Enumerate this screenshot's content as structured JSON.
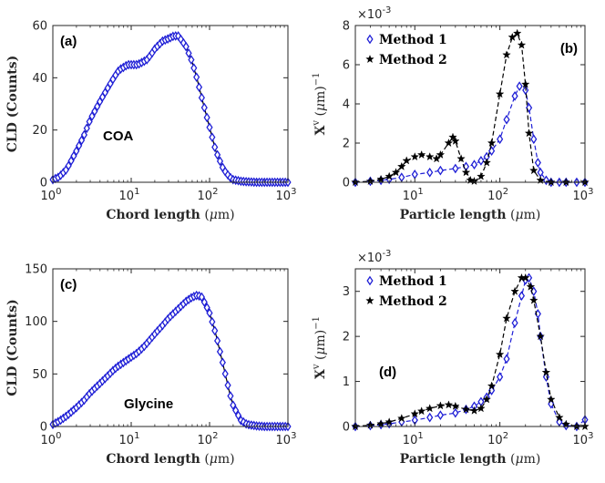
{
  "chart_data": [
    {
      "id": "a",
      "type": "line",
      "panel_label": "(a)",
      "annotation": "COA",
      "xscale": "log",
      "xlim": [
        1,
        1000
      ],
      "ylim": [
        0,
        60
      ],
      "xticks": [
        1,
        10,
        100,
        1000
      ],
      "xtick_labels": [
        {
          "base": "10",
          "exp": "0"
        },
        {
          "base": "10",
          "exp": "1"
        },
        {
          "base": "10",
          "exp": "2"
        },
        {
          "base": "10",
          "exp": "3"
        }
      ],
      "yticks": [
        0,
        20,
        40,
        60
      ],
      "ytick_labels": [
        "0",
        "20",
        "40",
        "60"
      ],
      "xlabel": {
        "text": "Chord length",
        "unit_open": " (",
        "unit_mu": "μ",
        "unit_rest": "m)"
      },
      "ylabel": "CLD (Counts)",
      "series": [
        {
          "name": "Method 1",
          "marker": "diamond",
          "color": "#1f1fd6",
          "line_color": "#000000",
          "x": [
            1,
            1.2,
            1.5,
            2,
            2.5,
            3,
            4,
            5,
            6,
            7,
            8,
            9,
            10,
            12,
            14,
            16,
            18,
            20,
            25,
            30,
            35,
            40,
            50,
            60,
            70,
            80,
            100,
            120,
            150,
            180,
            200,
            250,
            300,
            400,
            500,
            700,
            1000
          ],
          "y": [
            1,
            2,
            5,
            12,
            18,
            24,
            31,
            36,
            40,
            43,
            44,
            45,
            45,
            45,
            46,
            47,
            49,
            51,
            54,
            55,
            56,
            56,
            52,
            46,
            39,
            32,
            21,
            12,
            5,
            2,
            1,
            0.4,
            0.2,
            0,
            0,
            0,
            0
          ]
        }
      ]
    },
    {
      "id": "b",
      "type": "line",
      "panel_label": "(b)",
      "xscale": "log",
      "xlim": [
        2,
        1000
      ],
      "ylim": [
        0,
        8
      ],
      "multiplier": {
        "base": "×10",
        "exp": "-3"
      },
      "xticks": [
        10,
        100,
        1000
      ],
      "xtick_labels": [
        {
          "base": "10",
          "exp": "1"
        },
        {
          "base": "10",
          "exp": "2"
        },
        {
          "base": "10",
          "exp": "3"
        }
      ],
      "yticks": [
        0,
        2,
        4,
        6,
        8
      ],
      "ytick_labels": [
        "0",
        "2",
        "4",
        "6",
        "8"
      ],
      "xlabel": {
        "text": "Particle length",
        "unit_open": " (",
        "unit_mu": "μ",
        "unit_rest": "m)"
      },
      "ylabel": {
        "text": "X",
        "sup": "v",
        "unit_open": " (",
        "unit_mu": "μ",
        "unit_rest": "m)",
        "unit_exp": "−1"
      },
      "legend": [
        "Method 1",
        "Method 2"
      ],
      "series": [
        {
          "name": "Method 1",
          "marker": "diamond",
          "color": "#1f1fd6",
          "dash": "5,3",
          "x": [
            2,
            3,
            4,
            5,
            7,
            10,
            15,
            20,
            30,
            40,
            50,
            60,
            70,
            80,
            100,
            120,
            150,
            170,
            200,
            220,
            250,
            280,
            300,
            350,
            400,
            500,
            600,
            800,
            1000
          ],
          "y": [
            0,
            0.05,
            0.1,
            0.15,
            0.25,
            0.4,
            0.5,
            0.6,
            0.7,
            0.8,
            0.9,
            1.1,
            1.3,
            1.6,
            2.2,
            3.2,
            4.4,
            4.9,
            4.7,
            3.8,
            2.2,
            1.0,
            0.5,
            0.1,
            0,
            0,
            0,
            0,
            0
          ]
        },
        {
          "name": "Method 2",
          "marker": "star",
          "color": "#000000",
          "dash": "5,3",
          "x": [
            2,
            3,
            4,
            5,
            6,
            7,
            8,
            10,
            12,
            15,
            18,
            20,
            25,
            28,
            30,
            35,
            40,
            45,
            50,
            60,
            70,
            80,
            100,
            120,
            140,
            160,
            180,
            200,
            220,
            250,
            300,
            400,
            600,
            1000
          ],
          "y": [
            0,
            0.05,
            0.15,
            0.3,
            0.5,
            0.8,
            1.1,
            1.3,
            1.4,
            1.3,
            1.2,
            1.4,
            2.0,
            2.3,
            2.1,
            1.2,
            0.5,
            0.1,
            0.05,
            0.3,
            1.0,
            2.0,
            4.5,
            6.5,
            7.4,
            7.6,
            7.0,
            5.0,
            2.5,
            0.6,
            0.1,
            0,
            0,
            0
          ]
        }
      ]
    },
    {
      "id": "c",
      "type": "line",
      "panel_label": "(c)",
      "annotation": "Glycine",
      "xscale": "log",
      "xlim": [
        1,
        1000
      ],
      "ylim": [
        0,
        150
      ],
      "xticks": [
        1,
        10,
        100,
        1000
      ],
      "xtick_labels": [
        {
          "base": "10",
          "exp": "0"
        },
        {
          "base": "10",
          "exp": "1"
        },
        {
          "base": "10",
          "exp": "2"
        },
        {
          "base": "10",
          "exp": "3"
        }
      ],
      "yticks": [
        0,
        50,
        100,
        150
      ],
      "ytick_labels": [
        "0",
        "50",
        "100",
        "150"
      ],
      "xlabel": {
        "text": "Chord length",
        "unit_open": " (",
        "unit_mu": "μ",
        "unit_rest": "m)"
      },
      "ylabel": "CLD (Counts)",
      "series": [
        {
          "name": "Method 1",
          "marker": "diamond",
          "color": "#1f1fd6",
          "line_color": "#000000",
          "x": [
            1,
            1.2,
            1.5,
            2,
            2.5,
            3,
            4,
            5,
            6,
            7,
            8,
            10,
            12,
            15,
            20,
            25,
            30,
            40,
            50,
            60,
            70,
            80,
            100,
            120,
            150,
            180,
            200,
            250,
            300,
            400,
            500,
            700,
            1000
          ],
          "y": [
            2,
            5,
            10,
            18,
            25,
            32,
            41,
            48,
            54,
            58,
            61,
            66,
            70,
            77,
            88,
            96,
            103,
            112,
            119,
            123,
            125,
            123,
            108,
            88,
            58,
            32,
            20,
            6,
            2,
            0.5,
            0,
            0,
            0
          ]
        }
      ]
    },
    {
      "id": "d",
      "type": "line",
      "panel_label": "(d)",
      "xscale": "log",
      "xlim": [
        2,
        1000
      ],
      "ylim": [
        0,
        3.5
      ],
      "multiplier": {
        "base": "×10",
        "exp": "-3"
      },
      "xticks": [
        10,
        100,
        1000
      ],
      "xtick_labels": [
        {
          "base": "10",
          "exp": "1"
        },
        {
          "base": "10",
          "exp": "2"
        },
        {
          "base": "10",
          "exp": "3"
        }
      ],
      "yticks": [
        0,
        1,
        2,
        3
      ],
      "ytick_labels": [
        "0",
        "1",
        "2",
        "3"
      ],
      "xlabel": {
        "text": "Particle length",
        "unit_open": " (",
        "unit_mu": "μ",
        "unit_rest": "m)"
      },
      "ylabel": {
        "text": "X",
        "sup": "v",
        "unit_open": " (",
        "unit_mu": "μ",
        "unit_rest": "m)",
        "unit_exp": "−1"
      },
      "legend": [
        "Method 1",
        "Method 2"
      ],
      "series": [
        {
          "name": "Method 1",
          "marker": "diamond",
          "color": "#1f1fd6",
          "dash": "5,3",
          "x": [
            2,
            3,
            4,
            5,
            7,
            10,
            15,
            20,
            30,
            40,
            50,
            60,
            70,
            80,
            100,
            120,
            150,
            180,
            200,
            220,
            250,
            280,
            300,
            350,
            400,
            500,
            600,
            800,
            1000
          ],
          "y": [
            0,
            0.02,
            0.04,
            0.06,
            0.1,
            0.14,
            0.2,
            0.25,
            0.3,
            0.38,
            0.45,
            0.55,
            0.65,
            0.8,
            1.1,
            1.5,
            2.3,
            2.9,
            3.25,
            3.3,
            3.0,
            2.5,
            2.0,
            1.1,
            0.5,
            0.1,
            0.02,
            0,
            0.15
          ]
        },
        {
          "name": "Method 2",
          "marker": "star",
          "color": "#000000",
          "dash": "5,3",
          "x": [
            2,
            3,
            4,
            5,
            7,
            10,
            12,
            15,
            20,
            25,
            30,
            40,
            50,
            60,
            70,
            80,
            100,
            120,
            150,
            180,
            200,
            230,
            250,
            300,
            350,
            400,
            500,
            600,
            800,
            1000
          ],
          "y": [
            0,
            0.03,
            0.06,
            0.1,
            0.18,
            0.28,
            0.34,
            0.4,
            0.46,
            0.48,
            0.45,
            0.38,
            0.35,
            0.4,
            0.6,
            0.9,
            1.6,
            2.4,
            3.0,
            3.3,
            3.3,
            3.1,
            2.8,
            2.0,
            1.2,
            0.6,
            0.2,
            0.05,
            0,
            0
          ]
        }
      ]
    }
  ]
}
